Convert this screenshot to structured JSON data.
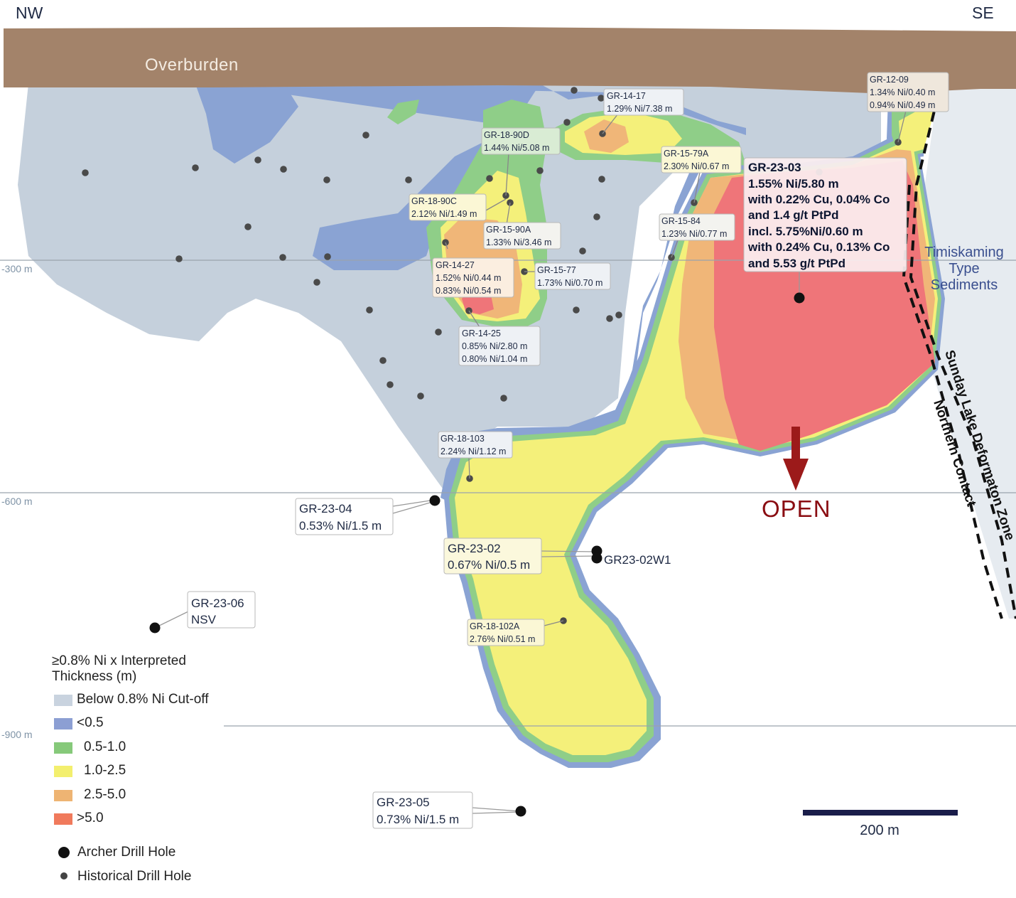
{
  "directions": {
    "left": "NW",
    "right": "SE"
  },
  "overburden_label": "Overburden",
  "depths": [
    "-300 m",
    "-600 m",
    "-900 m"
  ],
  "geology": {
    "line1": "Timiskaming",
    "line2": "Type",
    "line3": "Sediments"
  },
  "fault": {
    "line1": "Sunday Lake Deformaton Zone",
    "line2": "Northern Contact"
  },
  "open_label": "OPEN",
  "historical_labels": [
    {
      "id": "GR-14-17",
      "lines": [
        "GR-14-17",
        "1.29% Ni/7.38 m"
      ]
    },
    {
      "id": "GR-18-90D",
      "lines": [
        "GR-18-90D",
        "1.44% Ni/5.08 m"
      ]
    },
    {
      "id": "GR-15-79A",
      "lines": [
        "GR-15-79A",
        "2.30% Ni/0.67 m"
      ]
    },
    {
      "id": "GR-12-09",
      "lines": [
        "GR-12-09",
        "1.34% Ni/0.40 m",
        "0.94% Ni/0.49 m"
      ]
    },
    {
      "id": "GR-18-90C",
      "lines": [
        "GR-18-90C",
        "2.12% Ni/1.49 m"
      ]
    },
    {
      "id": "GR-15-90A",
      "lines": [
        "GR-15-90A",
        "1.33% Ni/3.46 m"
      ]
    },
    {
      "id": "GR-15-84",
      "lines": [
        "GR-15-84",
        "1.23% Ni/0.77 m"
      ]
    },
    {
      "id": "GR-14-27",
      "lines": [
        "GR-14-27",
        "1.52% Ni/0.44 m",
        "0.83% Ni/0.54 m"
      ]
    },
    {
      "id": "GR-15-77",
      "lines": [
        "GR-15-77",
        "1.73% Ni/0.70 m"
      ]
    },
    {
      "id": "GR-14-25",
      "lines": [
        "GR-14-25",
        "0.85% Ni/2.80 m",
        "0.80% Ni/1.04 m"
      ]
    },
    {
      "id": "GR-18-103",
      "lines": [
        "GR-18-103",
        "2.24% Ni/1.12 m"
      ]
    },
    {
      "id": "GR-18-102A",
      "lines": [
        "GR-18-102A",
        "2.76% Ni/0.51 m"
      ]
    }
  ],
  "archer_labels": [
    {
      "id": "GR-23-03",
      "lines": [
        "GR-23-03",
        "1.55% Ni/5.80 m",
        "with 0.22% Cu, 0.04% Co",
        "and 1.4 g/t PtPd",
        "incl. 5.75%Ni/0.60 m",
        "with 0.24% Cu, 0.13% Co",
        "and 5.53 g/t PtPd"
      ]
    },
    {
      "id": "GR-23-04",
      "lines": [
        "GR-23-04",
        "0.53% Ni/1.5 m"
      ]
    },
    {
      "id": "GR-23-02",
      "lines": [
        "GR-23-02",
        "0.67% Ni/0.5 m"
      ]
    },
    {
      "id": "GR-23-06",
      "lines": [
        "GR-23-06",
        "NSV"
      ]
    },
    {
      "id": "GR-23-05",
      "lines": [
        "GR-23-05",
        "0.73% Ni/1.5 m"
      ]
    }
  ],
  "wedge_label": "GR23-02W1",
  "legend": {
    "title_line1": "≥0.8% Ni x Interpreted",
    "title_line2": "Thickness (m)",
    "items": [
      {
        "label": "Below 0.8% Ni Cut-off",
        "color": "#c9d3df"
      },
      {
        "label": "<0.5",
        "color": "#8c9fd3"
      },
      {
        "label": "0.5-1.0",
        "color": "#86c97a"
      },
      {
        "label": "1.0-2.5",
        "color": "#f3ef6e"
      },
      {
        "label": "2.5-5.0",
        "color": "#eeb473"
      },
      {
        "label": ">5.0",
        "color": "#f07a5c"
      }
    ],
    "archer": "Archer Drill Hole",
    "historical": "Historical Drill Hole"
  },
  "scale_bar": "200 m",
  "colors": {
    "overburden": "#a3836a",
    "below_cutoff": "#c5d0dc",
    "lt05": "#8aa3d3",
    "c05_10": "#8fce88",
    "c10_25": "#f4f07a",
    "c25_50": "#f0b678",
    "gt50": "#ef7579",
    "sediments": "#e6ebf0",
    "open_arrow": "#9c1a1a"
  }
}
